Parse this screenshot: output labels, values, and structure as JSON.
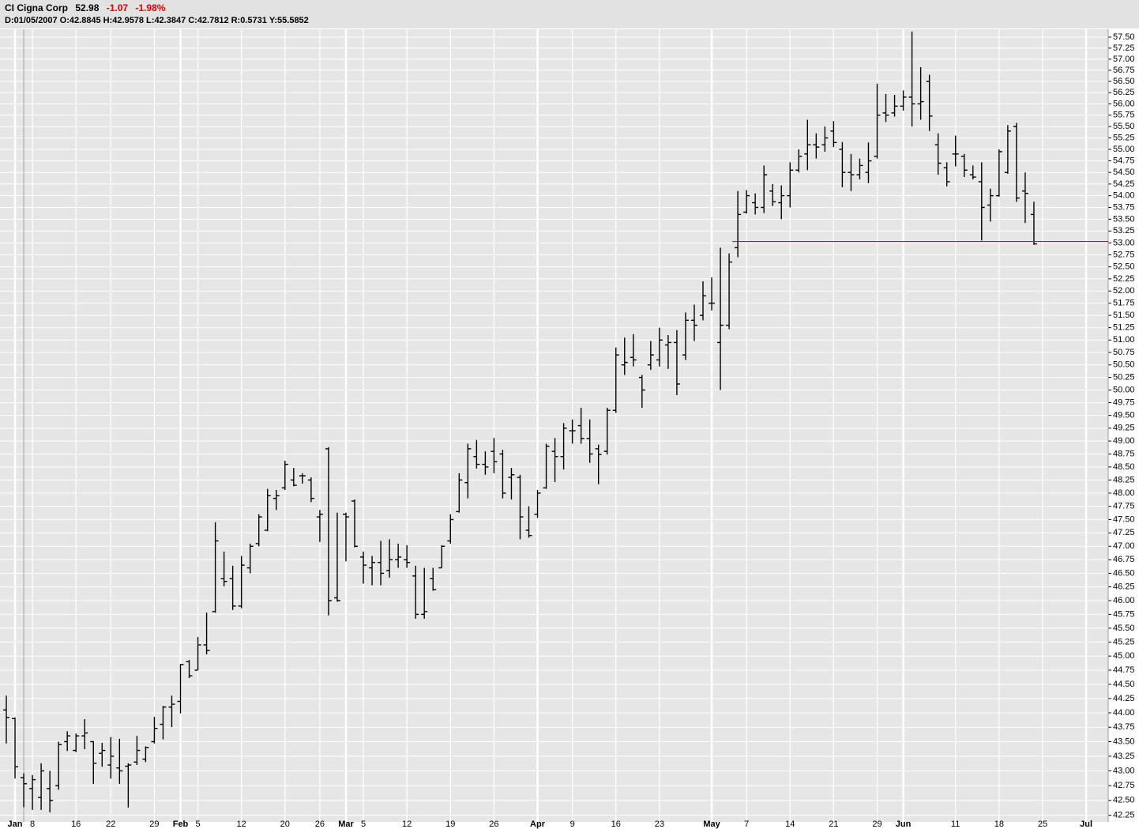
{
  "header": {
    "symbol": "CI Cigna Corp",
    "last": "52.98",
    "change": "-1.07",
    "change_pct": "-1.98%",
    "info": [
      {
        "label": "D:",
        "value": "01/05/2007"
      },
      {
        "label": "O:",
        "value": "42.8845"
      },
      {
        "label": "H:",
        "value": "42.9578"
      },
      {
        "label": "L:",
        "value": "42.3847"
      },
      {
        "label": "C:",
        "value": "42.7812"
      },
      {
        "label": "R:",
        "value": "0.5731"
      },
      {
        "label": "Y:",
        "value": "55.5852"
      }
    ]
  },
  "chart_data": {
    "type": "ohlc",
    "log": true,
    "grid": true,
    "color": "#000000",
    "hline": {
      "value": 53.03,
      "color": "#7b1fa2"
    },
    "ylim": [
      42.14,
      57.68
    ],
    "yticks": [
      {
        "value": 42.25,
        "label": "42.25"
      },
      {
        "value": 42.5,
        "label": "42.50"
      },
      {
        "value": 42.75,
        "label": "42.75"
      },
      {
        "value": 43,
        "label": "43.00"
      },
      {
        "value": 43.25,
        "label": "43.25"
      },
      {
        "value": 43.5,
        "label": "43.50"
      },
      {
        "value": 43.75,
        "label": "43.75"
      },
      {
        "value": 44,
        "label": "44.00"
      },
      {
        "value": 44.25,
        "label": "44.25"
      },
      {
        "value": 44.5,
        "label": "44.50"
      },
      {
        "value": 44.75,
        "label": "44.75"
      },
      {
        "value": 45,
        "label": "45.00"
      },
      {
        "value": 45.25,
        "label": "45.25"
      },
      {
        "value": 45.5,
        "label": "45.50"
      },
      {
        "value": 45.75,
        "label": "45.75"
      },
      {
        "value": 46,
        "label": "46.00"
      },
      {
        "value": 46.25,
        "label": "46.25"
      },
      {
        "value": 46.5,
        "label": "46.50"
      },
      {
        "value": 46.75,
        "label": "46.75"
      },
      {
        "value": 47,
        "label": "47.00"
      },
      {
        "value": 47.25,
        "label": "47.25"
      },
      {
        "value": 47.5,
        "label": "47.50"
      },
      {
        "value": 47.75,
        "label": "47.75"
      },
      {
        "value": 48,
        "label": "48.00"
      },
      {
        "value": 48.25,
        "label": "48.25"
      },
      {
        "value": 48.5,
        "label": "48.50"
      },
      {
        "value": 48.75,
        "label": "48.75"
      },
      {
        "value": 49,
        "label": "49.00"
      },
      {
        "value": 49.25,
        "label": "49.25"
      },
      {
        "value": 49.5,
        "label": "49.50"
      },
      {
        "value": 49.75,
        "label": "49.75"
      },
      {
        "value": 50,
        "label": "50.00"
      },
      {
        "value": 50.25,
        "label": "50.25"
      },
      {
        "value": 50.5,
        "label": "50.50"
      },
      {
        "value": 50.75,
        "label": "50.75"
      },
      {
        "value": 51,
        "label": "51.00"
      },
      {
        "value": 51.25,
        "label": "51.25"
      },
      {
        "value": 51.5,
        "label": "51.50"
      },
      {
        "value": 51.75,
        "label": "51.75"
      },
      {
        "value": 52,
        "label": "52.00"
      },
      {
        "value": 52.25,
        "label": "52.25"
      },
      {
        "value": 52.5,
        "label": "52.50"
      },
      {
        "value": 52.75,
        "label": "52.75"
      },
      {
        "value": 53,
        "label": "53.00"
      },
      {
        "value": 53.25,
        "label": "53.25"
      },
      {
        "value": 53.5,
        "label": "53.50"
      },
      {
        "value": 53.75,
        "label": "53.75"
      },
      {
        "value": 54,
        "label": "54.00"
      },
      {
        "value": 54.25,
        "label": "54.25"
      },
      {
        "value": 54.5,
        "label": "54.50"
      },
      {
        "value": 54.75,
        "label": "54.75"
      },
      {
        "value": 55,
        "label": "55.00"
      },
      {
        "value": 55.25,
        "label": "55.25"
      },
      {
        "value": 55.5,
        "label": "55.50"
      },
      {
        "value": 55.75,
        "label": "55.75"
      },
      {
        "value": 56,
        "label": "56.00"
      },
      {
        "value": 56.25,
        "label": "56.25"
      },
      {
        "value": 56.5,
        "label": "56.50"
      },
      {
        "value": 56.75,
        "label": "56.75"
      },
      {
        "value": 57,
        "label": "57.00"
      },
      {
        "value": 57.25,
        "label": "57.25"
      },
      {
        "value": 57.5,
        "label": "57.50"
      }
    ],
    "categories": [
      null,
      "Jan",
      null,
      "8",
      null,
      null,
      null,
      null,
      "16",
      null,
      null,
      null,
      "22",
      null,
      null,
      null,
      null,
      "29",
      null,
      null,
      "Feb",
      null,
      "5",
      null,
      null,
      null,
      null,
      "12",
      null,
      null,
      null,
      null,
      "20",
      null,
      null,
      null,
      "26",
      null,
      null,
      "Mar",
      null,
      "5",
      null,
      null,
      null,
      null,
      "12",
      null,
      null,
      null,
      null,
      "19",
      null,
      null,
      null,
      null,
      "26",
      null,
      null,
      null,
      null,
      "Apr",
      null,
      null,
      null,
      "9",
      null,
      null,
      null,
      null,
      "16",
      null,
      null,
      null,
      null,
      "23",
      null,
      null,
      null,
      null,
      null,
      "May",
      null,
      null,
      null,
      "7",
      null,
      null,
      null,
      null,
      "14",
      null,
      null,
      null,
      null,
      "21",
      null,
      null,
      null,
      null,
      "29",
      null,
      null,
      "Jun",
      null,
      null,
      null,
      null,
      null,
      "11",
      null,
      null,
      null,
      null,
      "18",
      null,
      null,
      null,
      null,
      "25",
      null,
      null,
      null,
      null,
      "Jul"
    ],
    "open": [
      44.05,
      43.9,
      42.8845,
      42.7,
      42.55,
      42.7,
      42.75,
      43.5,
      43.35,
      43.6,
      43.5,
      43.3,
      43.1,
      43.05,
      43.08,
      43.15,
      43.2,
      43.5,
      43.8,
      44.1,
      44.2,
      44.9,
      44.75,
      45.2,
      45.8,
      46.4,
      46.4,
      45.9,
      46.6,
      47.05,
      47.3,
      47.9,
      48.1,
      48.25,
      48.33,
      48.25,
      47.55,
      48.85,
      46.05,
      47.6,
      47.85,
      46.8,
      46.6,
      46.7,
      46.55,
      46.75,
      46.75,
      46.45,
      45.75,
      46.4,
      46.6,
      47.1,
      47.65,
      48.2,
      48.7,
      48.55,
      48.8,
      48.75,
      48.3,
      48.3,
      47.3,
      47.6,
      48.1,
      48.8,
      48.7,
      49.2,
      49.3,
      49.05,
      48.85,
      48.8,
      49.6,
      50.5,
      50.65,
      50.25,
      50.5,
      50.6,
      50.9,
      50.95,
      50.7,
      51.4,
      51.5,
      51.75,
      50.95,
      51.3,
      52.9,
      53.65,
      53.85,
      53.75,
      54.1,
      53.85,
      54.0,
      54.55,
      54.9,
      55.1,
      55.1,
      55.4,
      55.0,
      54.5,
      54.45,
      54.5,
      54.85,
      55.8,
      55.8,
      55.95,
      56.15,
      56.0,
      56.5,
      55.1,
      54.6,
      54.9,
      54.85,
      54.45,
      54.3,
      53.8,
      54.0,
      54.5,
      55.5,
      54.1,
      53.6,
      null,
      null,
      null,
      null,
      null,
      null
    ],
    "high": [
      44.3,
      43.92,
      42.9578,
      42.93,
      43.13,
      43.0,
      43.5,
      43.68,
      43.64,
      43.89,
      43.51,
      43.48,
      43.58,
      43.55,
      43.13,
      43.6,
      43.42,
      43.93,
      44.12,
      44.3,
      44.86,
      44.93,
      45.34,
      45.78,
      47.45,
      46.9,
      46.64,
      46.82,
      47.05,
      47.6,
      48.08,
      48.06,
      48.62,
      48.48,
      48.38,
      48.3,
      47.68,
      48.88,
      47.63,
      47.63,
      47.88,
      46.9,
      46.82,
      47.1,
      47.13,
      47.05,
      47.02,
      46.64,
      46.6,
      46.6,
      47.02,
      47.6,
      48.38,
      48.95,
      49.02,
      48.8,
      49.06,
      48.83,
      48.48,
      48.35,
      47.75,
      48.06,
      48.95,
      49.06,
      49.35,
      49.42,
      49.65,
      49.42,
      48.93,
      49.65,
      50.85,
      51.05,
      51.12,
      50.3,
      50.98,
      51.25,
      51.1,
      51.2,
      51.56,
      51.72,
      52.2,
      52.28,
      52.9,
      52.78,
      54.1,
      54.12,
      54.05,
      54.65,
      54.25,
      54.22,
      54.72,
      55.0,
      55.65,
      55.35,
      55.5,
      55.62,
      55.16,
      54.9,
      54.8,
      55.15,
      56.45,
      56.22,
      56.2,
      56.3,
      57.63,
      56.82,
      56.65,
      55.35,
      54.72,
      55.3,
      54.9,
      54.65,
      54.72,
      54.15,
      55.0,
      55.53,
      55.58,
      54.5,
      53.87,
      null,
      null,
      null,
      null,
      null,
      null
    ],
    "low": [
      43.47,
      42.87,
      42.3847,
      42.34,
      42.34,
      42.3,
      42.68,
      43.34,
      43.32,
      43.37,
      42.78,
      43.07,
      42.87,
      42.78,
      42.38,
      43.1,
      43.15,
      43.47,
      43.54,
      43.75,
      43.99,
      44.61,
      44.75,
      45.03,
      45.78,
      46.26,
      45.83,
      45.86,
      46.5,
      47.0,
      47.28,
      47.68,
      48.06,
      48.13,
      48.18,
      47.83,
      47.08,
      45.73,
      45.98,
      46.72,
      46.98,
      46.31,
      46.28,
      46.28,
      46.42,
      46.6,
      46.6,
      45.67,
      45.67,
      46.18,
      46.6,
      47.05,
      47.63,
      47.9,
      48.47,
      48.35,
      48.38,
      47.9,
      47.88,
      47.13,
      47.16,
      47.53,
      48.08,
      48.21,
      48.45,
      48.95,
      48.95,
      48.58,
      48.17,
      48.74,
      49.55,
      50.3,
      50.47,
      49.65,
      50.4,
      50.47,
      50.42,
      49.9,
      50.6,
      50.98,
      51.4,
      51.6,
      50.0,
      51.22,
      52.7,
      53.62,
      53.6,
      53.63,
      53.78,
      53.5,
      53.75,
      54.5,
      54.55,
      54.8,
      54.95,
      55.05,
      54.18,
      54.1,
      54.35,
      54.27,
      54.8,
      55.6,
      55.72,
      55.85,
      55.5,
      55.65,
      55.4,
      54.45,
      54.2,
      54.63,
      54.4,
      54.35,
      53.05,
      53.45,
      53.98,
      54.47,
      53.87,
      53.42,
      52.96,
      null,
      null,
      null,
      null,
      null,
      null
    ],
    "close": [
      43.92,
      43.07,
      42.7812,
      42.85,
      43.0,
      42.5,
      43.45,
      43.6,
      43.6,
      43.65,
      43.13,
      43.35,
      43.25,
      43.0,
      43.1,
      43.35,
      43.4,
      43.73,
      44.1,
      44.15,
      44.85,
      44.65,
      45.2,
      45.1,
      47.1,
      46.35,
      45.9,
      46.65,
      47.0,
      47.55,
      47.95,
      47.95,
      48.55,
      48.15,
      48.33,
      47.9,
      47.6,
      46.0,
      46.0,
      47.55,
      47.0,
      46.65,
      46.7,
      46.5,
      46.75,
      46.8,
      46.7,
      45.75,
      45.8,
      46.2,
      47.0,
      47.5,
      48.25,
      48.85,
      48.55,
      48.5,
      48.6,
      48.0,
      48.35,
      47.55,
      47.2,
      48.0,
      48.9,
      48.7,
      49.25,
      49.2,
      49.05,
      48.75,
      48.74,
      49.6,
      50.7,
      50.55,
      50.6,
      50.0,
      50.7,
      51.0,
      50.95,
      50.12,
      51.4,
      51.3,
      51.9,
      51.75,
      51.3,
      52.6,
      53.6,
      54.0,
      53.75,
      54.45,
      53.87,
      54.0,
      54.55,
      54.85,
      55.1,
      55.05,
      55.25,
      55.15,
      54.5,
      54.45,
      54.65,
      54.75,
      55.75,
      55.75,
      55.95,
      56.15,
      56.0,
      56.05,
      55.73,
      54.7,
      54.3,
      54.9,
      54.55,
      54.4,
      53.75,
      54.0,
      54.95,
      55.4,
      53.95,
      54.05,
      52.98,
      null,
      null,
      null,
      null,
      null,
      null
    ]
  }
}
